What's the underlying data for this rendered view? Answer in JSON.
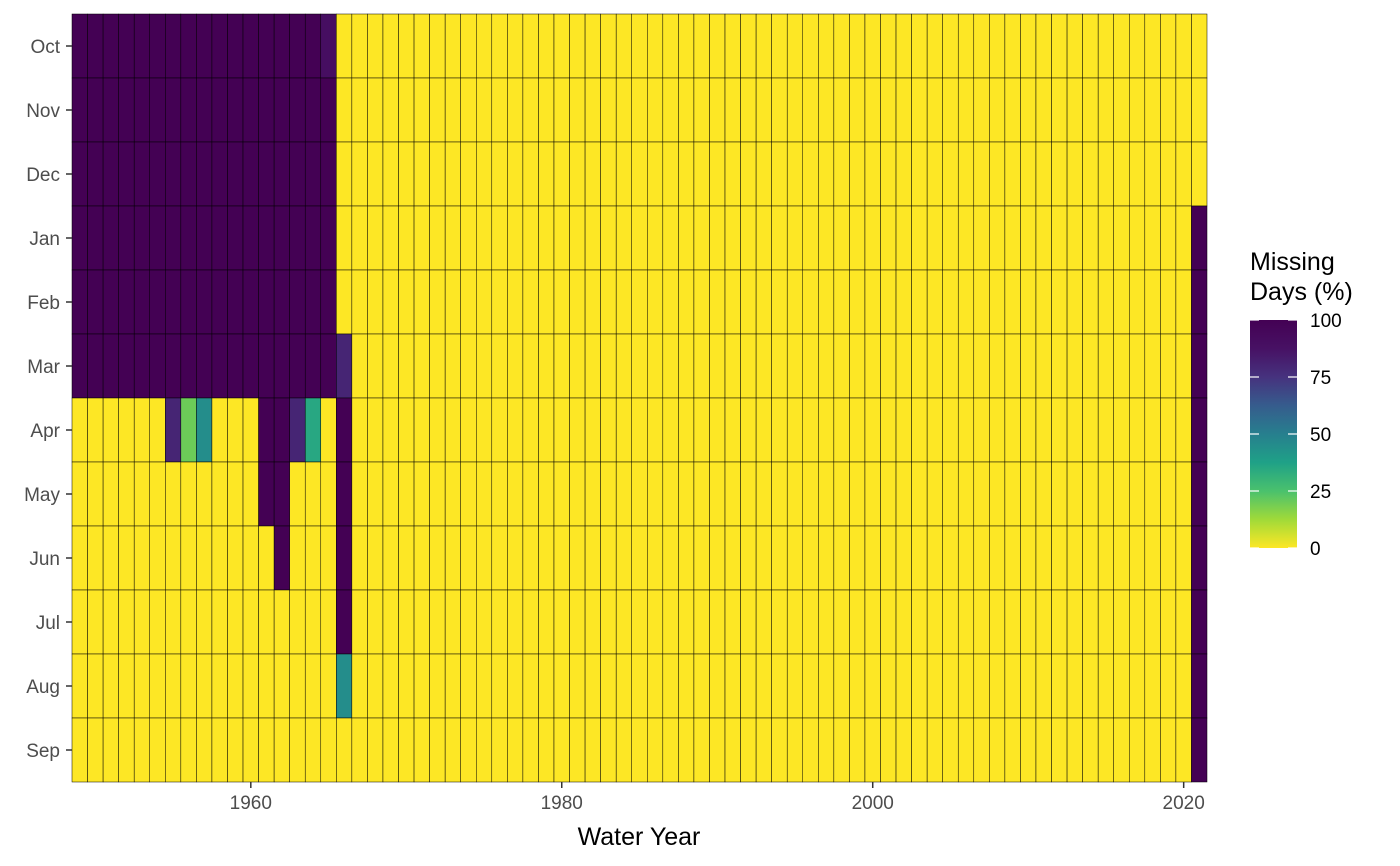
{
  "chart_data": {
    "type": "heatmap",
    "title": "",
    "xlabel": "Water Year",
    "ylabel": "",
    "x_start": 1949,
    "x_end": 2021,
    "x_ticks": [
      1960,
      1980,
      2000,
      2020
    ],
    "y_categories": [
      "Oct",
      "Nov",
      "Dec",
      "Jan",
      "Feb",
      "Mar",
      "Apr",
      "May",
      "Jun",
      "Jul",
      "Aug",
      "Sep"
    ],
    "default_value": 0,
    "color_scale": "viridis-reversed",
    "value_range": [
      0,
      100
    ],
    "grid": false,
    "cell_border_color": "#000000",
    "legend": {
      "title_lines": [
        "Missing",
        "Days (%)"
      ],
      "ticks": [
        0,
        25,
        50,
        75,
        100
      ],
      "placement": "right"
    },
    "nonzero_cells": [
      {
        "years": [
          1949,
          1965
        ],
        "months": [
          "Oct",
          "Nov",
          "Dec",
          "Jan",
          "Feb",
          "Mar"
        ],
        "value": 100
      },
      {
        "years": [
          1965,
          1965
        ],
        "months": [
          "Oct"
        ],
        "value": 90
      },
      {
        "years": [
          1955,
          1955
        ],
        "months": [
          "Apr"
        ],
        "value": 80
      },
      {
        "years": [
          1956,
          1956
        ],
        "months": [
          "Apr"
        ],
        "value": 20
      },
      {
        "years": [
          1957,
          1957
        ],
        "months": [
          "Apr"
        ],
        "value": 45
      },
      {
        "years": [
          1961,
          1962
        ],
        "months": [
          "Apr",
          "May"
        ],
        "value": 100
      },
      {
        "years": [
          1962,
          1962
        ],
        "months": [
          "Jun"
        ],
        "value": 100
      },
      {
        "years": [
          1963,
          1963
        ],
        "months": [
          "Apr"
        ],
        "value": 80
      },
      {
        "years": [
          1964,
          1964
        ],
        "months": [
          "Apr"
        ],
        "value": 35
      },
      {
        "years": [
          1966,
          1966
        ],
        "months": [
          "Mar"
        ],
        "value": 80
      },
      {
        "years": [
          1966,
          1966
        ],
        "months": [
          "Apr",
          "May",
          "Jun",
          "Jul"
        ],
        "value": 100
      },
      {
        "years": [
          1966,
          1966
        ],
        "months": [
          "Aug"
        ],
        "value": 45
      },
      {
        "years": [
          2021,
          2021
        ],
        "months": [
          "Jan",
          "Feb",
          "Mar",
          "Apr",
          "May",
          "Jun",
          "Jul",
          "Aug",
          "Sep"
        ],
        "value": 100
      }
    ]
  }
}
